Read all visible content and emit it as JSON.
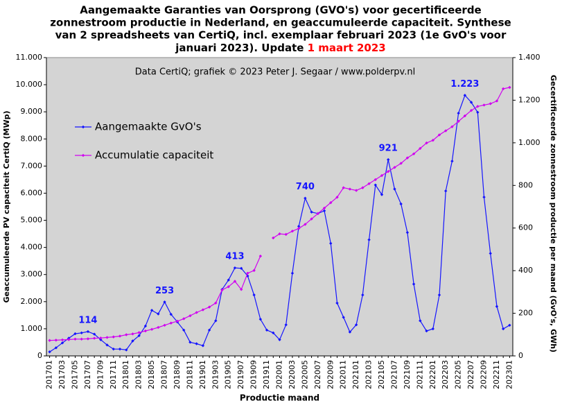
{
  "chart_data": {
    "type": "line",
    "title_lines": [
      "Aangemaakte Garanties van Oorsprong (GVO's) voor gecertificeerde",
      "zonnestroom productie in Nederland, en geaccumuleerde capaciteit.  Synthese",
      "van 2 spreadsheets van CertiQ, incl.  exemplaar februari  2023 (1e GvO's voor"
    ],
    "title_last": "januari  2023). Update ",
    "title_date": "1 maart 2023",
    "annotation": "Data CertiQ; grafiek © 2023 Peter J. Segaar / www.polderpv.nl",
    "xlabel": "Productie maand",
    "ylabel": "Geaccumuleerde PV capaciteit CertiQ (MWp)",
    "y2label": "Gecertificeerde zonnestroom productie per maand (GvO's, GWh)",
    "categories": [
      "201701",
      null,
      "201703",
      null,
      "201705",
      null,
      "201707",
      null,
      "201709",
      null,
      "201711",
      null,
      "201801",
      null,
      "201803",
      null,
      "201805",
      null,
      "201807",
      null,
      "201809",
      null,
      "201811",
      null,
      "201901",
      null,
      "201903",
      null,
      "201905",
      null,
      "201907",
      null,
      "201909",
      null,
      "201911",
      null,
      "202001",
      null,
      "202003",
      null,
      "202005",
      null,
      "202007",
      null,
      "202009",
      null,
      "202011",
      null,
      "202101",
      null,
      "202103",
      null,
      "202105",
      null,
      "202107",
      null,
      "202109",
      null,
      "202111",
      null,
      "202201",
      null,
      "202203",
      null,
      "202205",
      null,
      "202207",
      null,
      "202209",
      null,
      "202211",
      null,
      "202301"
    ],
    "series": [
      {
        "name": "Aangemaakte GvO's",
        "color": "#1414ff",
        "axis": "y2",
        "values": [
          19,
          38,
          61,
          83,
          104,
          108,
          114,
          102,
          76,
          51,
          32,
          32,
          28,
          70,
          95,
          140,
          214,
          197,
          253,
          195,
          159,
          121,
          64,
          57,
          48,
          121,
          165,
          312,
          356,
          413,
          411,
          375,
          286,
          172,
          121,
          108,
          76,
          146,
          388,
          608,
          740,
          675,
          668,
          681,
          528,
          248,
          181,
          112,
          146,
          286,
          545,
          802,
          757,
          921,
          783,
          713,
          579,
          337,
          165,
          117,
          127,
          286,
          774,
          914,
          1139,
          1223,
          1190,
          1143,
          745,
          481,
          232,
          127,
          144
        ],
        "value_labels": [
          null,
          null,
          null,
          null,
          null,
          null,
          "114",
          null,
          null,
          null,
          null,
          null,
          null,
          null,
          null,
          null,
          null,
          null,
          "253",
          null,
          null,
          null,
          null,
          null,
          null,
          null,
          null,
          null,
          null,
          "413",
          null,
          null,
          null,
          null,
          null,
          null,
          null,
          null,
          null,
          null,
          "740",
          null,
          null,
          null,
          null,
          null,
          null,
          null,
          null,
          null,
          null,
          null,
          null,
          "921",
          null,
          null,
          null,
          null,
          null,
          null,
          null,
          null,
          null,
          null,
          null,
          "1.223",
          null,
          null,
          null,
          null,
          null,
          null,
          null
        ]
      },
      {
        "name": "Accumulatie capaciteit",
        "color": "#d000f0",
        "axis": "y",
        "values": [
          570,
          580,
          590,
          600,
          620,
          620,
          630,
          650,
          660,
          680,
          700,
          730,
          780,
          810,
          860,
          920,
          980,
          1050,
          1130,
          1210,
          1280,
          1370,
          1480,
          1600,
          1700,
          1800,
          1950,
          2430,
          2550,
          2750,
          2450,
          3050,
          3150,
          3680,
          null,
          4350,
          4500,
          4480,
          4600,
          4700,
          4850,
          5050,
          5250,
          5450,
          5650,
          5850,
          6200,
          6150,
          6100,
          6200,
          6350,
          6500,
          6650,
          6800,
          6950,
          7100,
          7300,
          7450,
          7650,
          7850,
          7950,
          8150,
          8300,
          8450,
          8650,
          8850,
          9050,
          9200,
          9250,
          9300,
          9400,
          9850,
          9900
        ]
      }
    ],
    "ylim": [
      0,
      11000
    ],
    "yticks": [
      0,
      {
        "value": 1000,
        "label": "1.000"
      },
      {
        "value": 2000,
        "label": "2.000"
      },
      {
        "value": 3000,
        "label": "3.000"
      },
      {
        "value": 4000,
        "label": "4.000"
      },
      {
        "value": 5000,
        "label": "5.000"
      },
      {
        "value": 6000,
        "label": "6.000"
      },
      {
        "value": 7000,
        "label": "7.000"
      },
      {
        "value": 8000,
        "label": "8.000"
      },
      {
        "value": 9000,
        "label": "9.000"
      },
      {
        "value": 10000,
        "label": "10.000"
      },
      {
        "value": 11000,
        "label": "11.000"
      }
    ],
    "y2lim": [
      0,
      1400
    ],
    "y2ticks": [
      0,
      200,
      400,
      600,
      800,
      {
        "value": 1000,
        "label": "1.000"
      },
      {
        "value": 1200,
        "label": "1.200"
      },
      {
        "value": 1400,
        "label": "1.400"
      }
    ],
    "grid": false,
    "legend": "upper left",
    "background": "#d4d4d4"
  }
}
